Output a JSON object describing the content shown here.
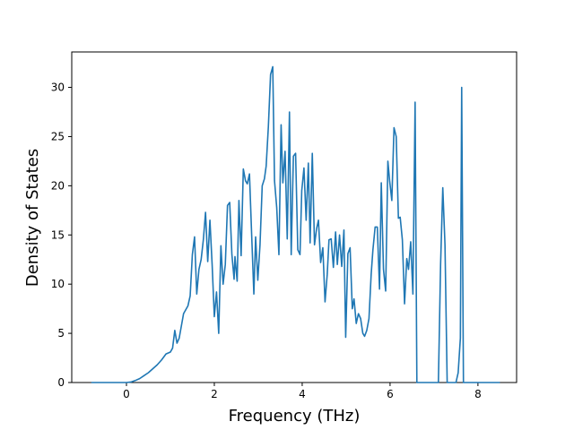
{
  "chart_data": {
    "type": "line",
    "xlabel": "Frequency (THz)",
    "ylabel": "Density of States",
    "xlim": [
      -1.245,
      8.88
    ],
    "ylim": [
      0,
      33.6
    ],
    "xticks": [
      0,
      2,
      4,
      6,
      8
    ],
    "yticks": [
      0,
      5,
      10,
      15,
      20,
      25,
      30
    ],
    "series": [
      {
        "color": "#1f77b4",
        "x": [
          -0.8,
          -0.4,
          0,
          0.1,
          0.2,
          0.3,
          0.4,
          0.5,
          0.6,
          0.7,
          0.8,
          0.9,
          1.0,
          1.05,
          1.1,
          1.15,
          1.2,
          1.3,
          1.4,
          1.45,
          1.5,
          1.55,
          1.6,
          1.65,
          1.7,
          1.75,
          1.8,
          1.85,
          1.9,
          1.95,
          2.0,
          2.05,
          2.1,
          2.15,
          2.2,
          2.25,
          2.3,
          2.35,
          2.4,
          2.45,
          2.47,
          2.52,
          2.56,
          2.61,
          2.66,
          2.71,
          2.75,
          2.8,
          2.85,
          2.9,
          2.94,
          2.99,
          3.04,
          3.09,
          3.14,
          3.18,
          3.23,
          3.28,
          3.33,
          3.37,
          3.42,
          3.47,
          3.52,
          3.56,
          3.61,
          3.66,
          3.71,
          3.75,
          3.8,
          3.85,
          3.9,
          3.95,
          3.99,
          4.04,
          4.09,
          4.14,
          4.18,
          4.23,
          4.28,
          4.33,
          4.37,
          4.42,
          4.47,
          4.52,
          4.57,
          4.61,
          4.66,
          4.71,
          4.76,
          4.8,
          4.85,
          4.9,
          4.95,
          4.99,
          5.04,
          5.09,
          5.14,
          5.18,
          5.23,
          5.28,
          5.33,
          5.38,
          5.42,
          5.47,
          5.52,
          5.57,
          5.61,
          5.66,
          5.71,
          5.76,
          5.8,
          5.85,
          5.9,
          5.95,
          5.99,
          6.04,
          6.09,
          6.14,
          6.19,
          6.23,
          6.28,
          6.33,
          6.38,
          6.42,
          6.47,
          6.52,
          6.57,
          6.61,
          7.1,
          7.15,
          7.2,
          7.25,
          7.3,
          7.5,
          7.55,
          7.6,
          7.63,
          7.67,
          8.5
        ],
        "values": [
          0,
          0,
          0,
          0.05,
          0.2,
          0.4,
          0.7,
          1.0,
          1.4,
          1.8,
          2.3,
          2.9,
          3.1,
          3.5,
          5.3,
          4.0,
          4.5,
          7.0,
          7.8,
          8.8,
          13,
          14.8,
          9.0,
          11.5,
          12.5,
          14.5,
          17.3,
          12.3,
          16.5,
          12,
          6.7,
          9.2,
          5.0,
          13.9,
          10,
          12,
          18,
          18.3,
          13,
          10.5,
          12.8,
          10.3,
          18.5,
          12.9,
          21.7,
          20.5,
          20.2,
          21.2,
          15,
          9,
          14.8,
          10.4,
          14,
          20,
          20.7,
          22,
          26,
          31.3,
          32.1,
          20.5,
          17.8,
          13,
          26.2,
          20.3,
          23.5,
          14.6,
          27.5,
          13,
          23,
          23.3,
          13.5,
          13,
          19.5,
          21.8,
          16.5,
          22.3,
          14.2,
          23.3,
          14,
          15.7,
          16.5,
          12.2,
          13.7,
          8.2,
          11,
          14.5,
          14.6,
          11.7,
          15.3,
          12,
          15,
          11.8,
          15.5,
          4.6,
          13.1,
          13.7,
          7.5,
          8.5,
          6.0,
          7,
          6.5,
          5.0,
          4.7,
          5.3,
          6.5,
          11,
          13.5,
          15.8,
          15.8,
          9.5,
          20.3,
          11.5,
          9.3,
          22.5,
          20.5,
          18.5,
          25.9,
          25.0,
          16.7,
          16.8,
          14.5,
          8.0,
          12.6,
          11.5,
          14.3,
          9.0,
          28.5,
          0,
          0,
          12,
          19.8,
          14,
          0,
          0,
          1,
          4.5,
          30,
          0,
          0
        ]
      }
    ]
  }
}
